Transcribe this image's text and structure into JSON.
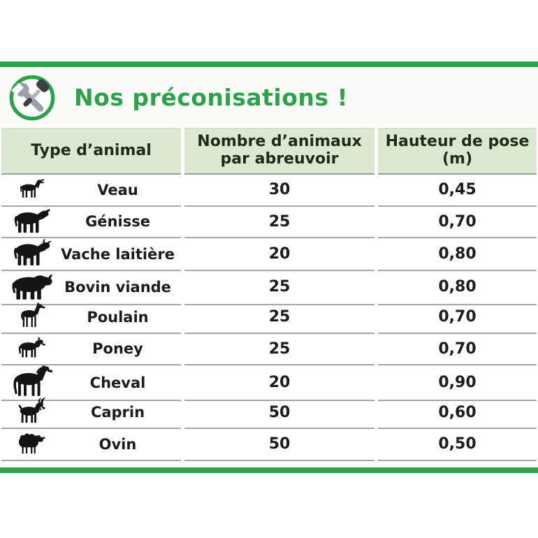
{
  "page": {
    "colors": {
      "accent_green": "#2ca24b",
      "header_bg": "#dbe9d1",
      "header_text": "#1d2b18",
      "divider_gray": "#a6a6a6",
      "silhouette_black": "#141414"
    }
  },
  "header": {
    "icon": "tools-icon",
    "title": "Nos préconisations !"
  },
  "table": {
    "columns": [
      {
        "lines": [
          "Type d’animal"
        ]
      },
      {
        "lines": [
          "Nombre d’animaux",
          "par abreuvoir"
        ]
      },
      {
        "lines": [
          "Hauteur de pose",
          "(m)"
        ]
      }
    ],
    "rows": [
      {
        "icon": "calf-icon",
        "animal": "Veau",
        "count": "30",
        "height_m": "0,45"
      },
      {
        "icon": "heifer-icon",
        "animal": "Génisse",
        "count": "25",
        "height_m": "0,70"
      },
      {
        "icon": "dairy-cow-icon",
        "animal": "Vache laitière",
        "count": "20",
        "height_m": "0,80"
      },
      {
        "icon": "bull-icon",
        "animal": "Bovin viande",
        "count": "25",
        "height_m": "0,80"
      },
      {
        "icon": "foal-icon",
        "animal": "Poulain",
        "count": "25",
        "height_m": "0,70"
      },
      {
        "icon": "pony-icon",
        "animal": "Poney",
        "count": "25",
        "height_m": "0,70"
      },
      {
        "icon": "horse-icon",
        "animal": "Cheval",
        "count": "20",
        "height_m": "0,90"
      },
      {
        "icon": "goat-icon",
        "animal": "Caprin",
        "count": "50",
        "height_m": "0,60"
      },
      {
        "icon": "sheep-icon",
        "animal": "Ovin",
        "count": "50",
        "height_m": "0,50"
      }
    ]
  },
  "chart_data": {
    "type": "table",
    "title": "Nos préconisations !",
    "columns": [
      "Type d’animal",
      "Nombre d’animaux par abreuvoir",
      "Hauteur de pose (m)"
    ],
    "rows": [
      [
        "Veau",
        30,
        "0,45"
      ],
      [
        "Génisse",
        25,
        "0,70"
      ],
      [
        "Vache laitière",
        20,
        "0,80"
      ],
      [
        "Bovin viande",
        25,
        "0,80"
      ],
      [
        "Poulain",
        25,
        "0,70"
      ],
      [
        "Poney",
        25,
        "0,70"
      ],
      [
        "Cheval",
        20,
        "0,90"
      ],
      [
        "Caprin",
        50,
        "0,60"
      ],
      [
        "Ovin",
        50,
        "0,50"
      ]
    ]
  }
}
